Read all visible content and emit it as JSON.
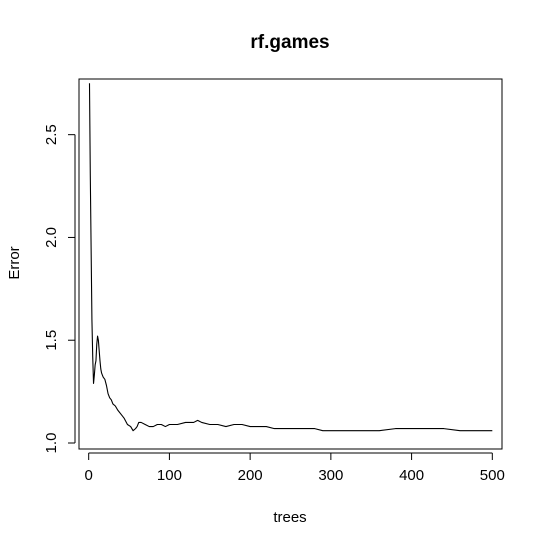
{
  "chart_data": {
    "type": "line",
    "title": "rf.games",
    "xlabel": "trees",
    "ylabel": "Error",
    "xlim": [
      -12,
      512
    ],
    "ylim": [
      1.0,
      2.8
    ],
    "xticks": [
      0,
      100,
      200,
      300,
      400,
      500
    ],
    "yticks": [
      1.0,
      1.5,
      2.0,
      2.5
    ],
    "ytick_labels": [
      "1.0",
      "1.5",
      "2.0",
      "2.5"
    ],
    "grid": false,
    "color": "#000000",
    "series": [
      {
        "x": [
          1,
          2,
          3,
          4,
          5,
          6,
          7,
          8,
          9,
          10,
          11,
          12,
          13,
          14,
          15,
          16,
          17,
          18,
          20,
          22,
          24,
          26,
          28,
          30,
          33,
          36,
          40,
          44,
          48,
          52,
          55,
          58,
          60,
          62,
          65,
          70,
          75,
          80,
          85,
          90,
          95,
          100,
          110,
          120,
          130,
          135,
          140,
          150,
          160,
          170,
          180,
          190,
          200,
          210,
          220,
          230,
          240,
          250,
          260,
          270,
          280,
          290,
          300,
          320,
          340,
          360,
          380,
          400,
          420,
          440,
          460,
          480,
          500
        ],
        "y": [
          2.75,
          2.3,
          1.95,
          1.6,
          1.42,
          1.29,
          1.33,
          1.38,
          1.4,
          1.48,
          1.52,
          1.5,
          1.45,
          1.4,
          1.36,
          1.34,
          1.33,
          1.32,
          1.31,
          1.28,
          1.24,
          1.22,
          1.21,
          1.19,
          1.18,
          1.16,
          1.14,
          1.12,
          1.09,
          1.08,
          1.06,
          1.07,
          1.08,
          1.1,
          1.1,
          1.09,
          1.08,
          1.08,
          1.09,
          1.09,
          1.08,
          1.09,
          1.09,
          1.1,
          1.1,
          1.11,
          1.1,
          1.09,
          1.09,
          1.08,
          1.09,
          1.09,
          1.08,
          1.08,
          1.08,
          1.07,
          1.07,
          1.07,
          1.07,
          1.07,
          1.07,
          1.06,
          1.06,
          1.06,
          1.06,
          1.06,
          1.07,
          1.07,
          1.07,
          1.07,
          1.06,
          1.06,
          1.06
        ]
      }
    ]
  }
}
